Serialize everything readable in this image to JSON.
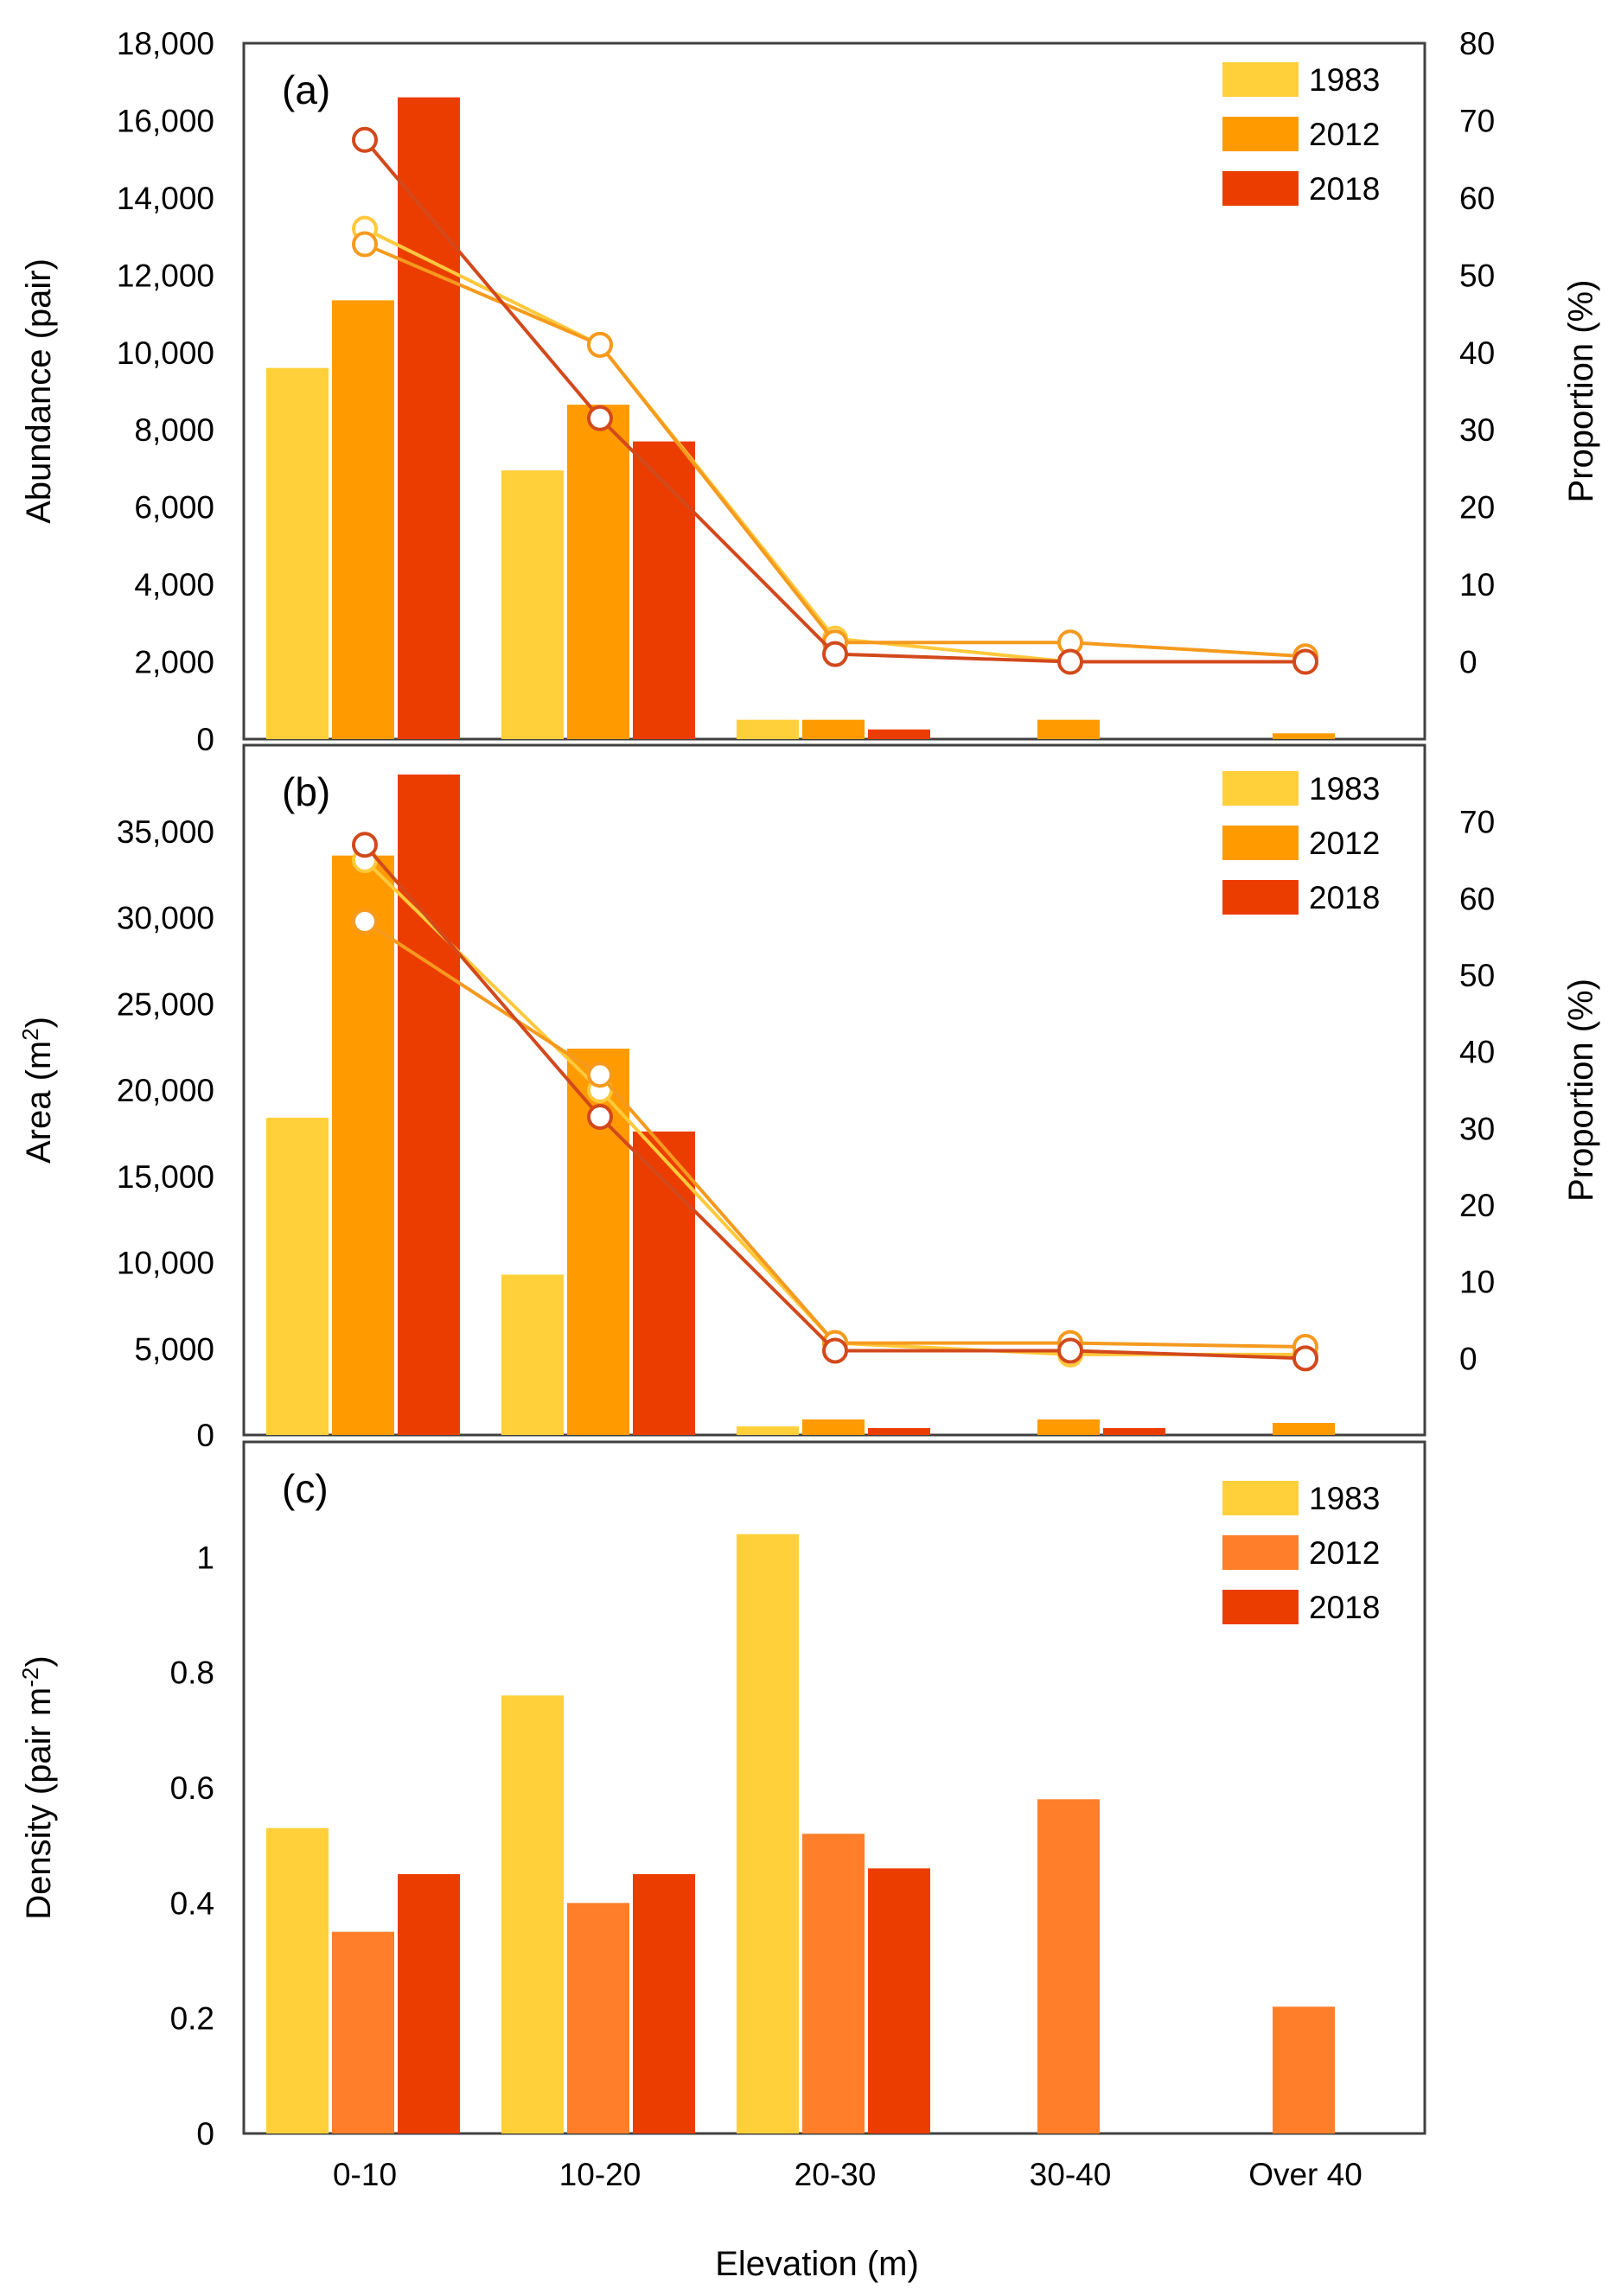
{
  "figure": {
    "xlabel": "Elevation (m)"
  },
  "colors": {
    "1983": "#FFD03A",
    "2012": "#FF9A00",
    "2018": "#EC3D00",
    "2012_density": "#FF7E2A",
    "line_1983": "#FFC93C",
    "line_2012": "#F59A1E",
    "line_2018": "#D2491C",
    "frame": "#404040"
  },
  "chart_data": [
    {
      "panel": "a",
      "label": "(a)",
      "type": "bar+line",
      "categories": [
        "0-10",
        "10-20",
        "20-30",
        "30-40",
        "Over 40"
      ],
      "ylabel": "Abundance (pair)",
      "y2label": "Proportion (%)",
      "ylim": [
        0,
        18000
      ],
      "yticks": [
        0,
        2000,
        4000,
        6000,
        8000,
        10000,
        12000,
        14000,
        16000,
        18000
      ],
      "ytick_labels": [
        "0",
        "2,000",
        "4,000",
        "6,000",
        "8,000",
        "10,000",
        "12,000",
        "14,000",
        "16,000",
        "18,000"
      ],
      "y2lim": [
        -10,
        80
      ],
      "y2ticks": [
        0,
        10,
        20,
        30,
        40,
        50,
        60,
        70,
        80
      ],
      "y2tick_labels": [
        "0",
        "10",
        "20",
        "30",
        "40",
        "50",
        "60",
        "70",
        "80"
      ],
      "legend": [
        "1983",
        "2012",
        "2018"
      ],
      "series": [
        {
          "name": "1983",
          "values": [
            9600,
            6950,
            500,
            0,
            0
          ],
          "proportion": [
            56,
            41,
            3,
            0,
            0
          ]
        },
        {
          "name": "2012",
          "values": [
            11350,
            8650,
            500,
            500,
            150
          ],
          "proportion": [
            54,
            41,
            2.5,
            2.5,
            0.7
          ]
        },
        {
          "name": "2018",
          "values": [
            16600,
            7700,
            250,
            0,
            0
          ],
          "proportion": [
            67.5,
            31.5,
            1,
            0,
            0
          ]
        }
      ]
    },
    {
      "panel": "b",
      "label": "(b)",
      "type": "bar+line",
      "categories": [
        "0-10",
        "10-20",
        "20-30",
        "30-40",
        "Over 40"
      ],
      "ylabel": "Area (m²)",
      "ylabel_base": "Area (m",
      "ylabel_sup": "2",
      "ylabel_end": ")",
      "y2label": "Proportion (%)",
      "ylim": [
        0,
        40000
      ],
      "yticks": [
        0,
        5000,
        10000,
        15000,
        20000,
        25000,
        30000,
        35000
      ],
      "ytick_labels": [
        "0",
        "5,000",
        "10,000",
        "15,000",
        "20,000",
        "25,000",
        "30,000",
        "35,000"
      ],
      "y2lim": [
        -10,
        80
      ],
      "y2ticks": [
        0,
        10,
        20,
        30,
        40,
        50,
        60,
        70
      ],
      "y2tick_labels": [
        "0",
        "10",
        "20",
        "30",
        "40",
        "50",
        "60",
        "70"
      ],
      "legend": [
        "1983",
        "2012",
        "2018"
      ],
      "series": [
        {
          "name": "1983",
          "values": [
            18400,
            9300,
            500,
            0,
            0
          ],
          "proportion": [
            65,
            35,
            2,
            0.5,
            0.5
          ]
        },
        {
          "name": "2012",
          "values": [
            33600,
            22400,
            900,
            900,
            700
          ],
          "proportion": [
            57,
            37,
            2,
            2,
            1.5
          ]
        },
        {
          "name": "2018",
          "values": [
            38300,
            17600,
            400,
            400,
            0
          ],
          "proportion": [
            67,
            31.5,
            1,
            1,
            0
          ]
        }
      ]
    },
    {
      "panel": "c",
      "label": "(c)",
      "type": "bar",
      "categories": [
        "0-10",
        "10-20",
        "20-30",
        "30-40",
        "Over 40"
      ],
      "ylabel": "Density (pair m⁻²)",
      "ylabel_base": "Density (pair m",
      "ylabel_sup": "-2",
      "ylabel_end": ")",
      "ylim": [
        0,
        1.2
      ],
      "yticks": [
        0,
        0.2,
        0.4,
        0.6,
        0.8,
        1
      ],
      "ytick_labels": [
        "0",
        "0.2",
        "0.4",
        "0.6",
        "0.8",
        "1"
      ],
      "legend": [
        "1983",
        "2012",
        "2018"
      ],
      "series": [
        {
          "name": "1983",
          "values": [
            0.53,
            0.76,
            1.04,
            0,
            0
          ]
        },
        {
          "name": "2012",
          "values": [
            0.35,
            0.4,
            0.52,
            0.58,
            0.22
          ]
        },
        {
          "name": "2018",
          "values": [
            0.45,
            0.45,
            0.46,
            0,
            0
          ]
        }
      ]
    }
  ]
}
